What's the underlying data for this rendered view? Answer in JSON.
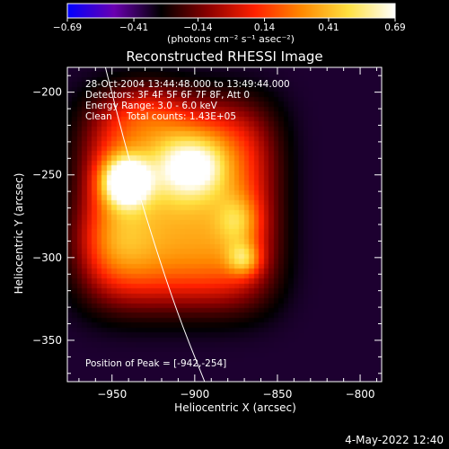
{
  "chart_data": {
    "type": "heatmap",
    "title": "Reconstructed RHESSI Image",
    "colorbar": {
      "ticks": [
        -0.69,
        -0.41,
        -0.14,
        0.14,
        0.41,
        0.69
      ],
      "tick_labels": [
        "-0.69",
        "-0.41",
        "-0.14",
        "0.14",
        "0.41",
        "0.69"
      ],
      "unit_label": "(photons cm⁻² s⁻¹ asec⁻²)",
      "range": [
        -0.69,
        0.69
      ],
      "colors": [
        "#0000ff",
        "#6a00b0",
        "#000000",
        "#8a0000",
        "#ff2000",
        "#ff8800",
        "#ffe040",
        "#ffffff"
      ]
    },
    "xlabel": "Heliocentric X (arcsec)",
    "ylabel": "Heliocentric Y (arcsec)",
    "xlim": [
      -977,
      -787
    ],
    "ylim": [
      -375,
      -185
    ],
    "x_ticks": [
      -950,
      -900,
      -850,
      -800
    ],
    "x_tick_labels": [
      "-950",
      "-900",
      "-850",
      "-800"
    ],
    "y_ticks": [
      -200,
      -250,
      -300,
      -350
    ],
    "y_tick_labels": [
      "-200",
      "-250",
      "-300",
      "-350"
    ],
    "background_value": -0.35,
    "emission": {
      "peak": [
        -942,
        -254
      ],
      "sources": [
        {
          "x": -942,
          "y": -254,
          "amp": 0.78,
          "sx": 10,
          "sy": 10
        },
        {
          "x": -908,
          "y": -245,
          "amp": 0.36,
          "sx": 12,
          "sy": 14
        },
        {
          "x": -893,
          "y": -245,
          "amp": 0.22,
          "sx": 10,
          "sy": 12
        },
        {
          "x": -873,
          "y": -278,
          "amp": 0.26,
          "sx": 9,
          "sy": 11
        },
        {
          "x": -870,
          "y": -301,
          "amp": 0.36,
          "sx": 7,
          "sy": 7
        },
        {
          "x": -930,
          "y": -210,
          "amp": 0.2,
          "sx": 18,
          "sy": 12
        },
        {
          "x": -952,
          "y": -290,
          "amp": 0.18,
          "sx": 16,
          "sy": 18
        }
      ],
      "body": {
        "x": -910,
        "y": -268,
        "amp": 0.72,
        "sx": 52,
        "sy": 56
      }
    },
    "limb_curve": [
      [
        -954,
        -185
      ],
      [
        -940,
        -240
      ],
      [
        -925,
        -290
      ],
      [
        -910,
        -335
      ],
      [
        -894,
        -375
      ]
    ],
    "annotations": {
      "time_range": "28-Oct-2004 13:44:48.000 to 13:49:44.000",
      "detectors": "Detectors: 3F 4F 5F 6F 7F 8F, Att 0",
      "energy_range": "Energy Range: 3.0 - 6.0 keV",
      "method": "Clean",
      "total_counts": "Total counts: 1.43E+05",
      "peak_position": "Position of Peak = [-942,-254]"
    },
    "grid": false
  },
  "footer": {
    "date": "4-May-2022 12:40"
  }
}
